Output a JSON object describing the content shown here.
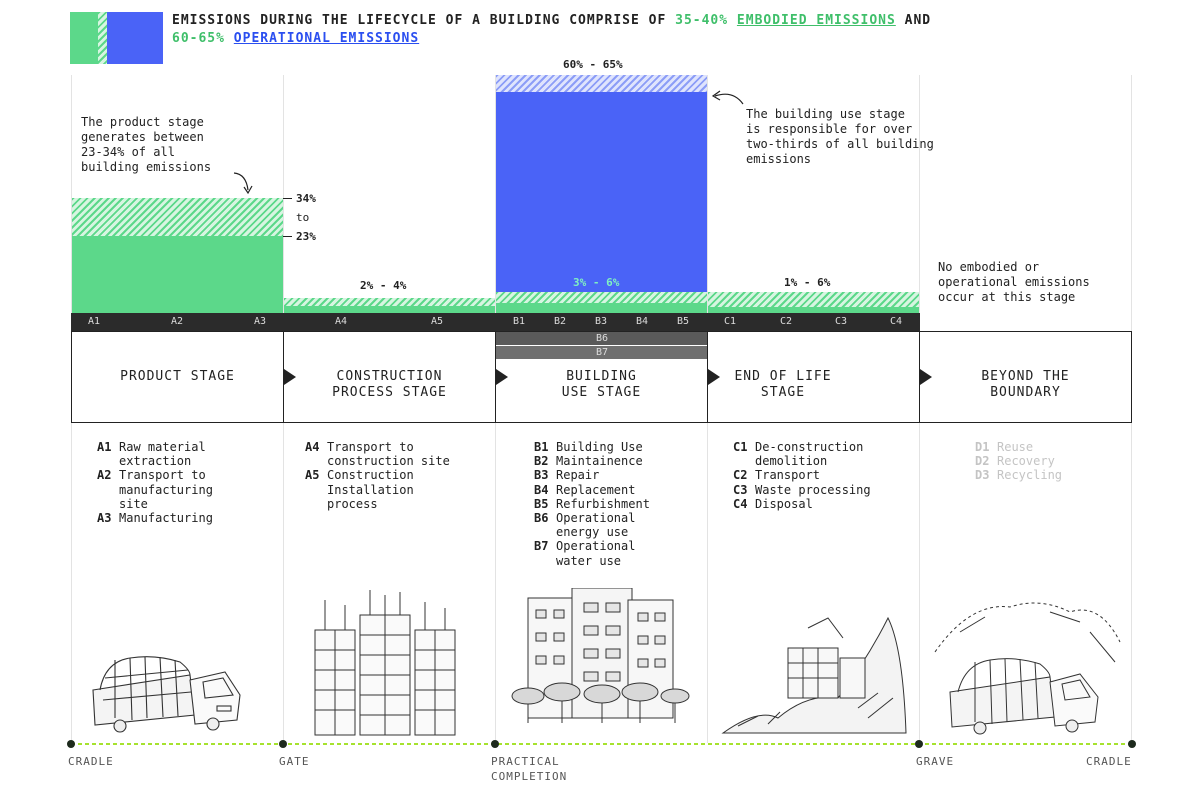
{
  "header": {
    "title_part1": "EMISSIONS DURING THE LIFECYCLE OF A BUILDING COMPRISE OF ",
    "title_pct_embodied": "35-40%",
    "title_embodied": "EMBODIED EMISSIONS",
    "title_and": " AND",
    "title_pct_operational": "60-65%",
    "title_operational": "OPERATIONAL EMISSIONS"
  },
  "colors": {
    "embodied": "#5cd88a",
    "operational": "#4a63f7",
    "codebar": "#2b2b2b",
    "timeline": "#a6e22e"
  },
  "notes": {
    "product": "The product stage\ngenerates between\n23-34% of all\nbuilding emissions",
    "use": "The building use stage\nis responsible for over\ntwo-thirds of all building\nemissions",
    "beyond": "No embodied or\noperational emissions\noccur at this stage"
  },
  "percent_labels": {
    "product_high": "34%",
    "product_to": "to",
    "product_low": "23%",
    "construction": "2% - 4%",
    "use_top": "60% - 65%",
    "use_embodied": "3% - 6%",
    "end_of_life": "1% - 6%"
  },
  "codes": {
    "product": [
      "A1",
      "A2",
      "A3"
    ],
    "construction": [
      "A4",
      "A5"
    ],
    "use": [
      "B1",
      "B2",
      "B3",
      "B4",
      "B5"
    ],
    "use_b6": "B6",
    "use_b7": "B7",
    "end_of_life": [
      "C1",
      "C2",
      "C3",
      "C4"
    ]
  },
  "stages": [
    {
      "label": "PRODUCT STAGE"
    },
    {
      "label": "CONSTRUCTION\nPROCESS STAGE"
    },
    {
      "label": "BUILDING\nUSE STAGE"
    },
    {
      "label": "END OF LIFE\nSTAGE"
    },
    {
      "label": "BEYOND THE\nBOUNDARY"
    }
  ],
  "lists": {
    "product": [
      {
        "k": "A1",
        "v": "Raw material\nextraction"
      },
      {
        "k": "A2",
        "v": "Transport to\nmanufacturing\nsite"
      },
      {
        "k": "A3",
        "v": "Manufacturing"
      }
    ],
    "construction": [
      {
        "k": "A4",
        "v": "Transport to\nconstruction site"
      },
      {
        "k": "A5",
        "v": "Construction\nInstallation\nprocess"
      }
    ],
    "use": [
      {
        "k": "B1",
        "v": "Building Use"
      },
      {
        "k": "B2",
        "v": "Maintainence"
      },
      {
        "k": "B3",
        "v": "Repair"
      },
      {
        "k": "B4",
        "v": "Replacement"
      },
      {
        "k": "B5",
        "v": "Refurbishment"
      },
      {
        "k": "B6",
        "v": "Operational\nenergy use"
      },
      {
        "k": "B7",
        "v": "Operational\nwater use"
      }
    ],
    "end_of_life": [
      {
        "k": "C1",
        "v": "De-construction\ndemolition"
      },
      {
        "k": "C2",
        "v": "Transport"
      },
      {
        "k": "C3",
        "v": "Waste processing"
      },
      {
        "k": "C4",
        "v": "Disposal"
      }
    ],
    "beyond": [
      {
        "k": "D1",
        "v": "Reuse"
      },
      {
        "k": "D2",
        "v": "Recovery"
      },
      {
        "k": "D3",
        "v": "Recycling"
      }
    ]
  },
  "milestones": {
    "cradle_start": "CRADLE",
    "gate": "GATE",
    "practical_completion": "PRACTICAL\nCOMPLETION",
    "grave": "GRAVE",
    "cradle_end": "CRADLE"
  },
  "illustrations": [
    "truck-illustration",
    "construction-illustration",
    "apartment-building-illustration",
    "demolition-illustration",
    "recycling-truck-illustration"
  ]
}
